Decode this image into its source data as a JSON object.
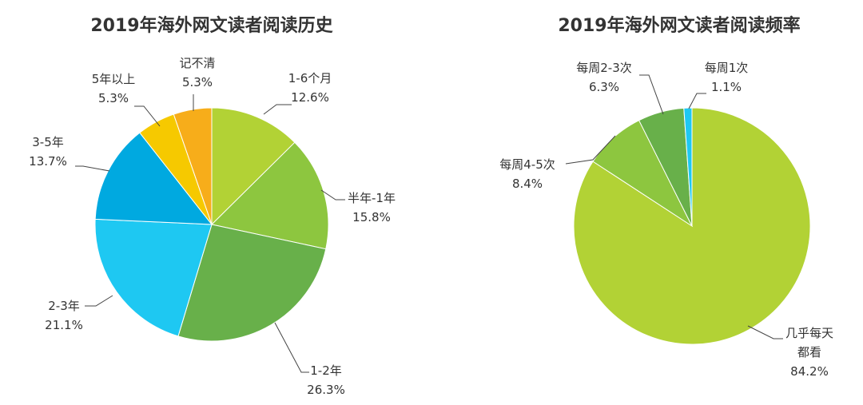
{
  "chart_data": [
    {
      "type": "pie",
      "title": "2019年海外网文读者阅读历史",
      "slices": [
        {
          "label": "1-6个月",
          "value": 12.6,
          "display": "12.6%",
          "color": "#b2d235"
        },
        {
          "label": "半年-1年",
          "value": 15.8,
          "display": "15.8%",
          "color": "#8dc63f"
        },
        {
          "label": "1-2年",
          "value": 26.3,
          "display": "26.3%",
          "color": "#68b04a"
        },
        {
          "label": "2-3年",
          "value": 21.1,
          "display": "21.1%",
          "color": "#1ec8f2"
        },
        {
          "label": "3-5年",
          "value": 13.7,
          "display": "13.7%",
          "color": "#00a9e0"
        },
        {
          "label": "5年以上",
          "value": 5.3,
          "display": "5.3%",
          "color": "#f6c900"
        },
        {
          "label": "记不清",
          "value": 5.3,
          "display": "5.3%",
          "color": "#f7ad1a"
        }
      ]
    },
    {
      "type": "pie",
      "title": "2019年海外网文读者阅读频率",
      "slices": [
        {
          "label": "几乎每天都看",
          "label_lines": [
            "几乎每天",
            "都看"
          ],
          "value": 84.2,
          "display": "84.2%",
          "color": "#b2d235"
        },
        {
          "label": "每周4-5次",
          "value": 8.4,
          "display": "8.4%",
          "color": "#8dc63f"
        },
        {
          "label": "每周2-3次",
          "value": 6.3,
          "display": "6.3%",
          "color": "#68b04a"
        },
        {
          "label": "每周1次",
          "value": 1.1,
          "display": "1.1%",
          "color": "#1ec8f2"
        }
      ]
    }
  ]
}
